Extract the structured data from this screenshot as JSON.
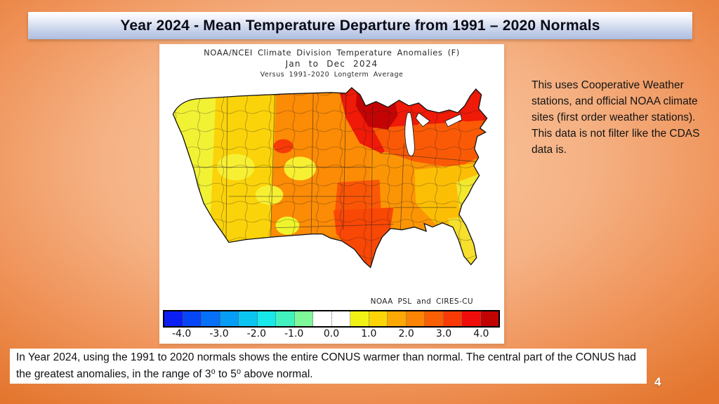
{
  "slide": {
    "title": "Year 2024 - Mean Temperature Departure from 1991 – 2020 Normals",
    "page_number": "4"
  },
  "map_figure": {
    "title_line1": "NOAA/NCEI Climate Division Temperature Anomalies (F)",
    "title_line2": "Jan to Dec 2024",
    "title_line3": "Versus 1991–2020 Longterm Average",
    "credit": "NOAA PSL and CIRES-CU",
    "colorbar": {
      "units": "F",
      "tick_labels": [
        "-4.0",
        "-3.0",
        "-2.0",
        "-1.0",
        "0.0",
        "1.0",
        "2.0",
        "3.0",
        "4.0"
      ],
      "cell_colors": [
        "#0b1ff2",
        "#0746f5",
        "#0670f6",
        "#089df5",
        "#0cc4f0",
        "#18e8ea",
        "#41f2bf",
        "#7ef898",
        "#ffffff",
        "#ffffff",
        "#f0f215",
        "#fdd506",
        "#fda804",
        "#fd8404",
        "#fb5f05",
        "#f93a06",
        "#ee0d0a",
        "#c20303"
      ]
    },
    "regions": [
      {
        "name": "central CONUS base",
        "anomaly_f": "2.0 to 2.5",
        "color": "#fc9505"
      },
      {
        "name": "interior west",
        "anomaly_f": "1.5 to 2.0",
        "color": "#fbd30a"
      },
      {
        "name": "west coast",
        "anomaly_f": "0.5 to 1.0",
        "color": "#f2f235"
      },
      {
        "name": "high plains",
        "anomaly_f": "2.0 to 2.5",
        "color": "#fc8b05"
      },
      {
        "name": "upper midwest and northern tier",
        "anomaly_f": "3.0 to 4.0",
        "color": "#ef1a07"
      },
      {
        "name": "minnesota wisconsin core",
        "anomaly_f": "4.0+",
        "color": "#c40404"
      },
      {
        "name": "ohio valley and northeast interior",
        "anomaly_f": "2.5 to 3.0",
        "color": "#fa5a06"
      },
      {
        "name": "texas and southern plains",
        "anomaly_f": "2.5 to 3.5",
        "color": "#f94706"
      },
      {
        "name": "southeast",
        "anomaly_f": "1.5 to 2.0",
        "color": "#fcbe05"
      },
      {
        "name": "carolina coast",
        "anomaly_f": "1.0",
        "color": "#f2e82e"
      },
      {
        "name": "florida peninsula",
        "anomaly_f": "1.0 to 1.5",
        "color": "#f6df2d"
      },
      {
        "name": "great basin patches",
        "anomaly_f": "1.0",
        "color": "#f7ef32"
      },
      {
        "name": "new mexico bright patch",
        "anomaly_f": "0.5",
        "color": "#eef52c"
      },
      {
        "name": "montana red patch",
        "anomaly_f": "3.0",
        "color": "#f63a08"
      }
    ]
  },
  "side_note": "This uses Cooperative Weather stations, and official NOAA climate sites (first order weather stations).  This data is not filter like the CDAS data is.",
  "caption": "In Year 2024, using the 1991 to 2020 normals shows the entire CONUS warmer than normal.  The central part of the CONUS had the greatest anomalies, in the range of 3⁰ to 5⁰ above normal.",
  "colors": {
    "background_center": "#f9cda7",
    "background_edge": "#e3752e",
    "title_bar_top": "#ffffff",
    "title_bar_bottom": "#a9b9de",
    "title_text": "#0c0c18",
    "panel": "#ffffff"
  }
}
